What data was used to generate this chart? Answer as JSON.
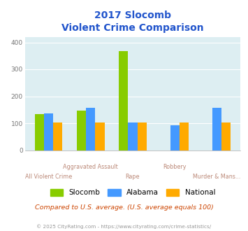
{
  "title_line1": "2017 Slocomb",
  "title_line2": "Violent Crime Comparison",
  "categories": [
    "All Violent Crime",
    "Aggravated Assault",
    "Rape",
    "Robbery",
    "Murder & Mans..."
  ],
  "slocomb": [
    133,
    148,
    367,
    0,
    0
  ],
  "alabama": [
    136,
    158,
    102,
    92,
    157
  ],
  "national": [
    102,
    102,
    103,
    103,
    102
  ],
  "color_slocomb": "#88cc00",
  "color_alabama": "#4499ff",
  "color_national": "#ffaa00",
  "ylim": [
    0,
    420
  ],
  "yticks": [
    0,
    100,
    200,
    300,
    400
  ],
  "bg_color": "#ddeef2",
  "note": "Compared to U.S. average. (U.S. average equals 100)",
  "footer": "© 2025 CityRating.com - https://www.cityrating.com/crime-statistics/",
  "title_color": "#2255cc",
  "xlabel_color": "#bb8877",
  "bar_width": 0.22,
  "grid_color": "#ffffff"
}
